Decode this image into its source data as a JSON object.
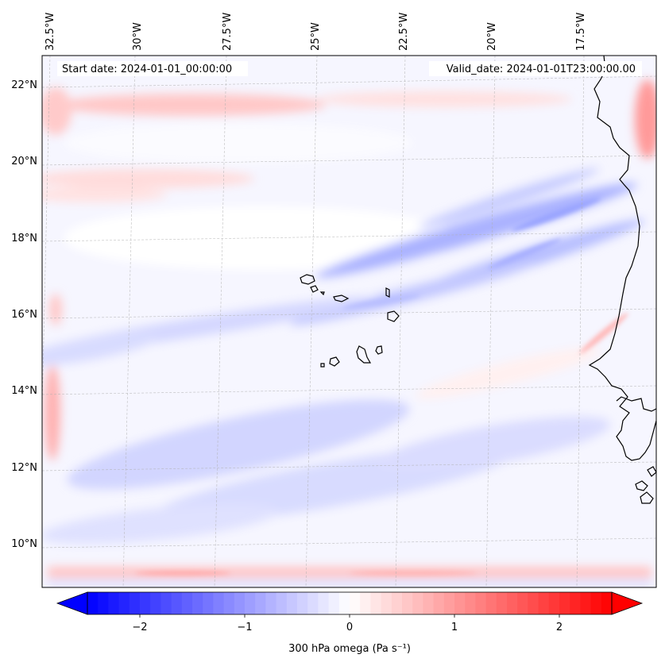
{
  "map": {
    "start_label": "Start date: 2024-01-01_00:00:00",
    "valid_label": "Valid_date: 2024-01-01T23:00:00.00",
    "lon_labels": [
      "32.5°W",
      "30°W",
      "27.5°W",
      "25°W",
      "22.5°W",
      "20°W",
      "17.5°W"
    ],
    "lat_labels": [
      "22°N",
      "20°N",
      "18°N",
      "16°N",
      "14°N",
      "12°N",
      "10°N"
    ],
    "variable": "300 hPa omega"
  },
  "colorbar": {
    "label": "300 hPa omega (Pa s⁻¹)",
    "ticks": [
      "−2",
      "−1",
      "0",
      "1",
      "2"
    ],
    "min": -2.5,
    "max": 2.5,
    "tick_values": [
      -2,
      -1,
      0,
      1,
      2
    ],
    "colormap": "bwr",
    "low_color": "#0000ff",
    "mid_color": "#ffffff",
    "high_color": "#ff0000"
  },
  "colors": {
    "coast": "#000000",
    "grid": "#b0b0b0"
  }
}
